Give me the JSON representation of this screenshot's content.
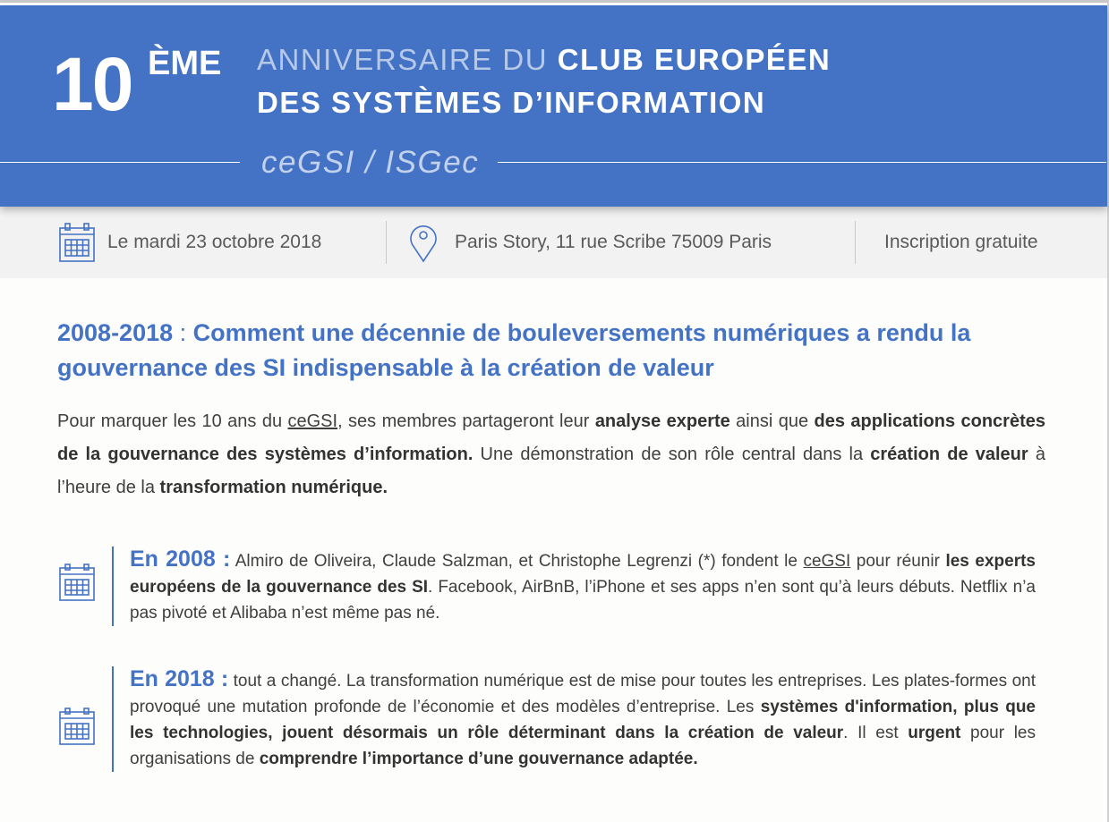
{
  "header": {
    "number": "10",
    "suffix": "ÈME",
    "line1_light": "ANNIVERSAIRE DU ",
    "line1_bold": "CLUB EUROPÉEN",
    "line2": "DES SYSTÈMES D’INFORMATION",
    "org": "ceGSI / ISGec",
    "color": "#4472c4"
  },
  "info_band": {
    "date": "Le mardi 23 octobre 2018",
    "date_icon": "calendar-icon",
    "location": "Paris Story, 11 rue Scribe 75009 Paris",
    "location_icon": "map-pin-icon",
    "registration": "Inscription gratuite"
  },
  "title": {
    "years": "2008-2018",
    "colon": " : ",
    "text": "Comment une décennie de bouleversements numériques a rendu la gouvernance des SI indispensable à la création de valeur"
  },
  "intro": [
    {
      "t": "Pour marquer les 10 ans du "
    },
    {
      "t": "ceGSI",
      "u": true
    },
    {
      "t": ", ses membres partageront leur "
    },
    {
      "t": "analyse experte",
      "b": true
    },
    {
      "t": " ainsi que "
    },
    {
      "t": "des applications concrètes de la gouvernance des systèmes d’information.",
      "b": true
    },
    {
      "t": " Une démonstration de son rôle central dans la "
    },
    {
      "t": "création de valeur",
      "b": true
    },
    {
      "t": " à l’heure de la "
    },
    {
      "t": "transformation numérique.",
      "b": true
    }
  ],
  "timeline": [
    {
      "year": "En 2008 :",
      "segments": [
        {
          "t": " Almiro de Oliveira, Claude Salzman, et Christophe Legrenzi (*) fondent le "
        },
        {
          "t": "ceGSI",
          "u": true
        },
        {
          "t": " pour réunir "
        },
        {
          "t": "les experts européens de la gouvernance des SI",
          "b": true
        },
        {
          "t": ". Facebook, AirBnB, l’iPhone et ses apps n’en sont qu’à leurs débuts. Netflix n’a pas pivoté et Alibaba n’est même pas né."
        }
      ]
    },
    {
      "year": "En 2018 :",
      "segments": [
        {
          "t": " tout a changé. La transformation numérique est de mise pour toutes les entreprises. Les plates-formes ont provoqué une mutation profonde de l’économie et des modèles d’entreprise. Les "
        },
        {
          "t": "systèmes d'information, plus que les technologies, jouent désormais un rôle déterminant dans la création de valeur",
          "b": true
        },
        {
          "t": ". Il est "
        },
        {
          "t": "urgent",
          "b": true
        },
        {
          "t": " pour les organisations de "
        },
        {
          "t": "comprendre l’importance d’une gouvernance adaptée.",
          "b": true
        }
      ]
    }
  ]
}
